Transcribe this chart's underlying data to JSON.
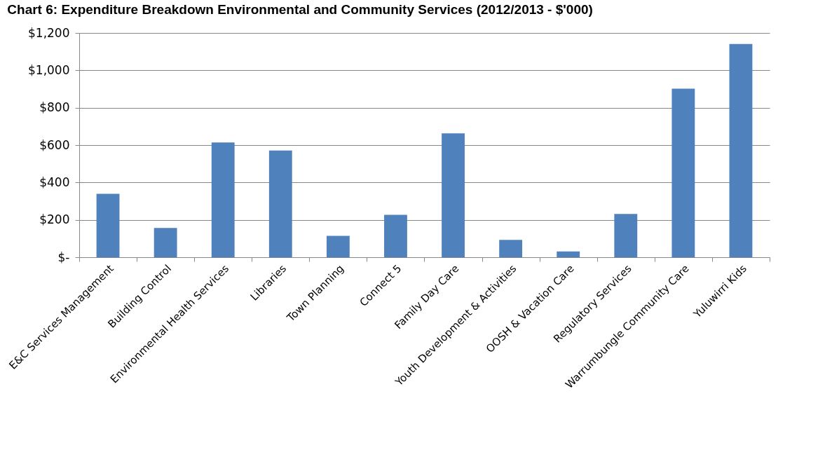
{
  "chart_data": {
    "type": "bar",
    "title": "Chart 6: Expenditure Breakdown Environmental and Community Services (2012/2013 - $'000)",
    "categories": [
      "E&C Services Management",
      "Building Control",
      "Environmental Health Services",
      "Libraries",
      "Town Planning",
      "Connect 5",
      "Family Day Care",
      "Youth Development & Activities",
      "OOSH & Vacation Care",
      "Regulatory Services",
      "Warrumbungle Community Care",
      "Yuluwirri Kids"
    ],
    "values": [
      339,
      157,
      614,
      571,
      114,
      227,
      663,
      93,
      31,
      232,
      902,
      1141
    ],
    "color": "#4f81bd",
    "ylim": [
      0,
      1200
    ],
    "yticks": [
      {
        "value": 0,
        "label": "$-"
      },
      {
        "value": 200,
        "label": "$200"
      },
      {
        "value": 400,
        "label": "$400"
      },
      {
        "value": 600,
        "label": "$600"
      },
      {
        "value": 800,
        "label": "$800"
      },
      {
        "value": 1000,
        "label": "$1,000"
      },
      {
        "value": 1200,
        "label": "$1,200"
      }
    ],
    "grid": "y"
  }
}
